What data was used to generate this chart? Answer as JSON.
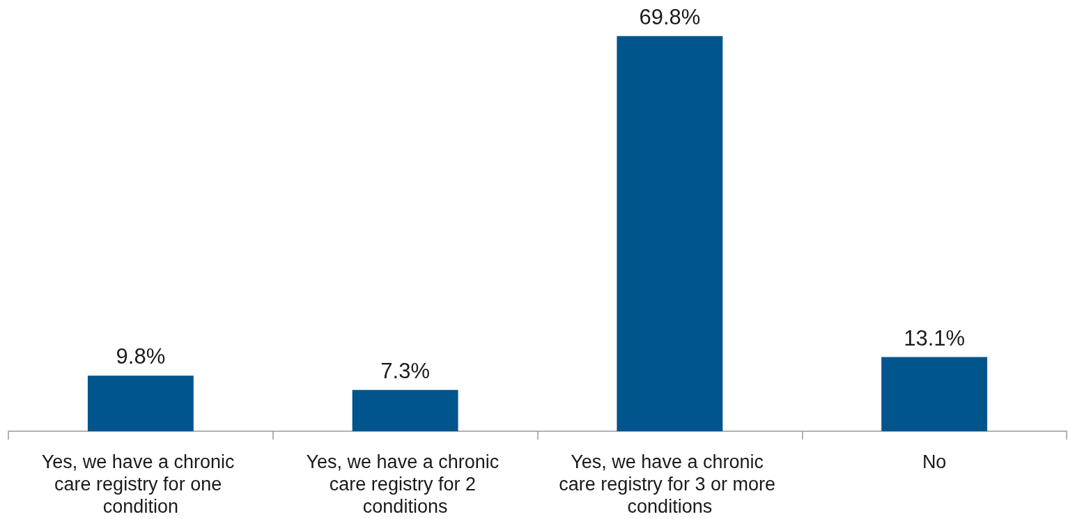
{
  "chart_data": {
    "type": "bar",
    "categories": [
      "Yes, we have a chronic care registry for one condition",
      "Yes, we have a chronic care registry for 2 conditions",
      "Yes, we have a chronic care registry for 3 or more conditions",
      "No"
    ],
    "values": [
      9.8,
      7.3,
      69.8,
      13.1
    ],
    "value_labels": [
      "9.8%",
      "7.3%",
      "69.8%",
      "13.1%"
    ],
    "color": "#00558c",
    "tick_labels": "x"
  }
}
